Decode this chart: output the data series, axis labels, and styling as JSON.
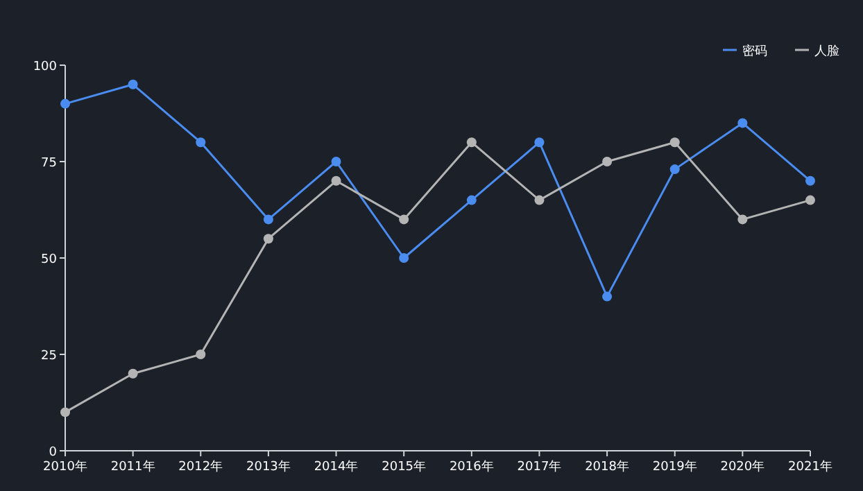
{
  "chart_data": {
    "type": "line",
    "categories": [
      "2010年",
      "2011年",
      "2012年",
      "2013年",
      "2014年",
      "2015年",
      "2016年",
      "2017年",
      "2018年",
      "2019年",
      "2020年",
      "2021年"
    ],
    "series": [
      {
        "name": "密码",
        "color": "#4a8cf0",
        "values": [
          90,
          95,
          80,
          60,
          75,
          50,
          65,
          80,
          40,
          73,
          85,
          70
        ]
      },
      {
        "name": "人脸",
        "color": "#b4b4b4",
        "values": [
          10,
          20,
          25,
          55,
          70,
          60,
          80,
          65,
          75,
          80,
          60,
          65
        ]
      }
    ],
    "ylim": [
      0,
      100
    ],
    "yticks": [
      0,
      25,
      50,
      75,
      100
    ],
    "grid": false,
    "legend": "top right",
    "marker": "circle",
    "line_style": "solid"
  }
}
